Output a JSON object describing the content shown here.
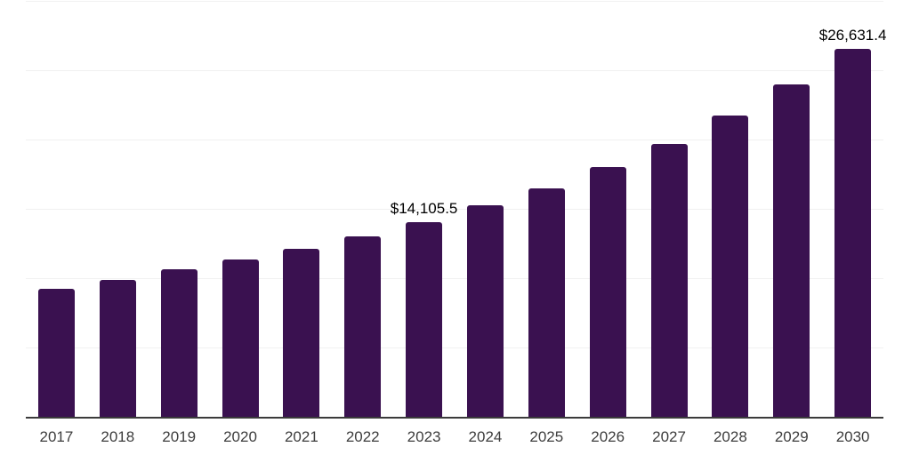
{
  "chart_data": {
    "type": "bar",
    "title": "",
    "xlabel": "",
    "ylabel": "",
    "categories": [
      "2017",
      "2018",
      "2019",
      "2020",
      "2021",
      "2022",
      "2023",
      "2024",
      "2025",
      "2026",
      "2027",
      "2028",
      "2029",
      "2030"
    ],
    "values": [
      9300,
      9950,
      10700,
      11400,
      12200,
      13100,
      14105.5,
      15350,
      16550,
      18100,
      19750,
      21800,
      24050,
      26631.4
    ],
    "data_labels": {
      "2023": "$14,105.5",
      "2030": "$26,631.4"
    },
    "ylim": [
      0,
      30000
    ],
    "gridline_step": 5000,
    "grid": "horizontal",
    "legend": "none",
    "bar_color": "#3A1150",
    "gridline_color": "#F1F1F1",
    "axis_line_color": "#3B3B3B",
    "x_tick_color": "#3D3D3D",
    "data_label_color": "#000000"
  }
}
